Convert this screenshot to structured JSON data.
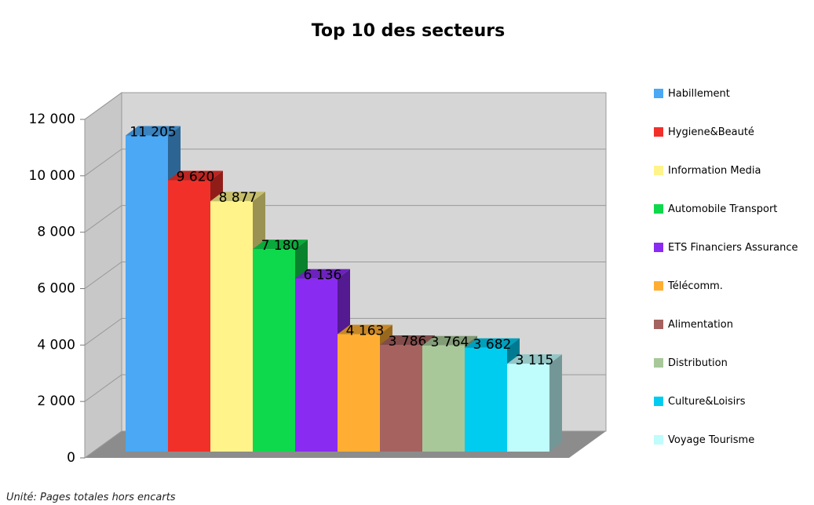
{
  "chart_data": {
    "type": "bar3d",
    "title": "Top 10 des secteurs",
    "categories": [
      "Habillement",
      "Hygiene&Beauté",
      "Information Media",
      "Automobile Transport",
      "ETS Financiers Assurance",
      "Télécomm.",
      "Alimentation",
      "Distribution",
      "Culture&Loisirs",
      "Voyage Tourisme"
    ],
    "values": [
      11205,
      9620,
      8877,
      7180,
      6136,
      4163,
      3786,
      3764,
      3682,
      3115
    ],
    "value_labels": [
      "11 205",
      "9 620",
      "8 877",
      "7 180",
      "6 136",
      "4 163",
      "3 786",
      "3 764",
      "3 682",
      "3 115"
    ],
    "colors": [
      "#4aa8f5",
      "#f2302a",
      "#fff38a",
      "#0ed84b",
      "#8a2bf2",
      "#ffae33",
      "#a5625f",
      "#a8c89a",
      "#00ccf0",
      "#bffcfc"
    ],
    "ylim": [
      0,
      12000
    ],
    "yticks": [
      0,
      {
        "value": 2000,
        "label": "2 000"
      },
      {
        "value": 4000,
        "label": "4 000"
      },
      {
        "value": 6000,
        "label": "6 000"
      },
      {
        "value": 8000,
        "label": "8 000"
      },
      {
        "value": 10000,
        "label": "10 000"
      },
      {
        "value": 12000,
        "label": "12 000"
      }
    ],
    "grid": true,
    "legend": "right",
    "footnote": "Unité: Pages totales hors encarts"
  }
}
